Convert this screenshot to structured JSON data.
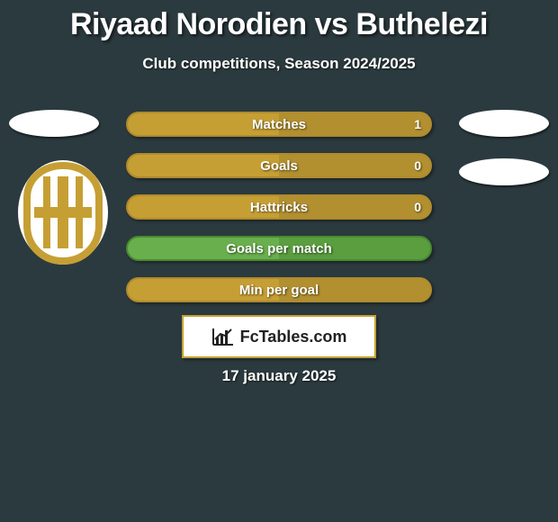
{
  "title": "Riyaad Norodien vs Buthelezi",
  "subtitle": "Club competitions, Season 2024/2025",
  "rows": [
    {
      "label": "Matches",
      "value_left": "",
      "value_right": "1",
      "fill_pct": 50,
      "style": "gold"
    },
    {
      "label": "Goals",
      "value_left": "",
      "value_right": "0",
      "fill_pct": 50,
      "style": "gold"
    },
    {
      "label": "Hattricks",
      "value_left": "",
      "value_right": "0",
      "fill_pct": 50,
      "style": "gold"
    },
    {
      "label": "Goals per match",
      "value_left": "",
      "value_right": "",
      "fill_pct": 50,
      "style": "green"
    },
    {
      "label": "Min per goal",
      "value_left": "",
      "value_right": "",
      "fill_pct": 50,
      "style": "gold"
    }
  ],
  "colors": {
    "background": "#2b3a3e",
    "gold_fill": "#c69f34",
    "gold_base": "#b29030",
    "gold_border": "#b08a2e",
    "green_fill": "#6aaf4d",
    "green_base": "#5a9e3f",
    "green_border": "#4a8a30",
    "text": "#ffffff"
  },
  "watermark": "FcTables.com",
  "date": "17 january 2025"
}
